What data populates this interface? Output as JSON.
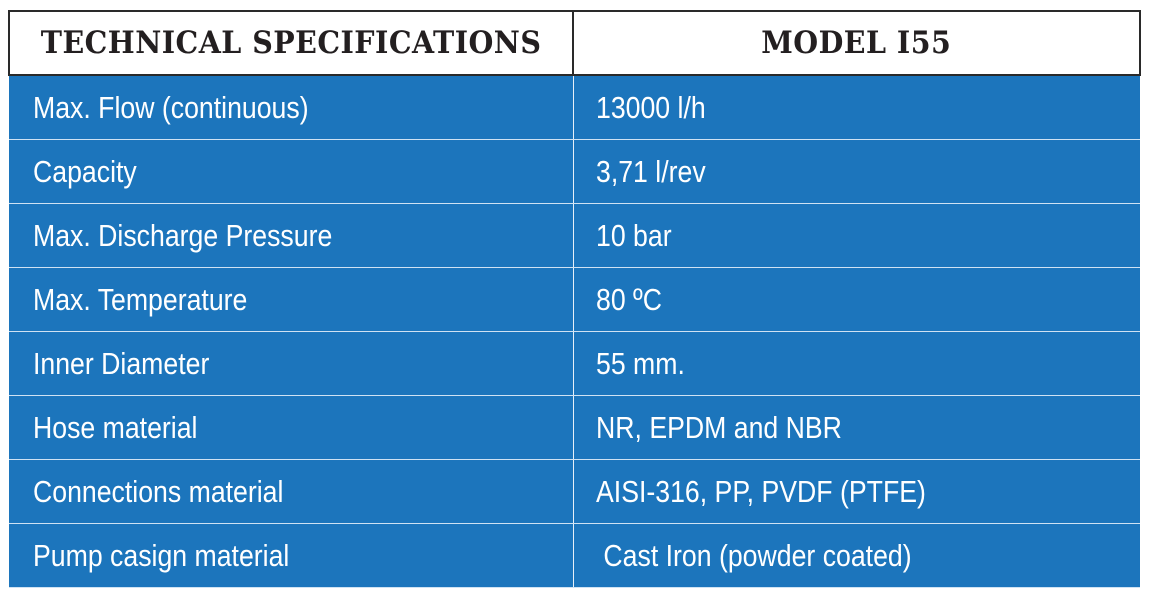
{
  "table": {
    "header": {
      "col1": "TECHNICAL SPECIFICATIONS",
      "col2": "MODEL I55"
    },
    "rows": [
      {
        "label": "Max. Flow (continuous)",
        "value": "13000 l/h"
      },
      {
        "label": "Capacity",
        "value": "3,71 l/rev"
      },
      {
        "label": "Max. Discharge Pressure",
        "value": "10 bar"
      },
      {
        "label": "Max. Temperature",
        "value": "80 ºC"
      },
      {
        "label": "Inner Diameter",
        "value": "55 mm."
      },
      {
        "label": "Hose material",
        "value": "NR, EPDM and NBR"
      },
      {
        "label": "Connections material",
        "value": "AISI-316, PP, PVDF (PTFE)"
      },
      {
        "label": "Pump casign material",
        "value": " Cast Iron (powder coated)"
      }
    ]
  },
  "colors": {
    "row_background": "#1c75bc",
    "header_background": "#ffffff",
    "header_text": "#231f20",
    "body_text": "#ffffff"
  }
}
